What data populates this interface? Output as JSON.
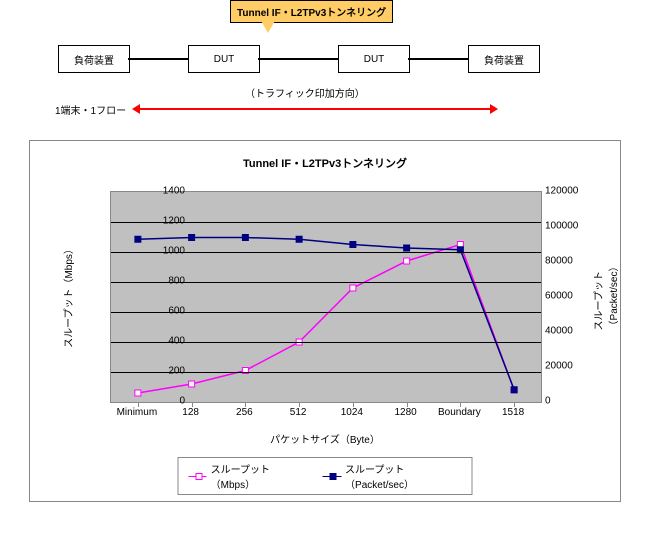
{
  "diagram": {
    "callout": "Tunnel IF・L2TPv3トンネリング",
    "box1": "負荷装置",
    "box2": "DUT",
    "box3": "DUT",
    "box4": "負荷装置",
    "traffic_note": "（トラフィック印加方向）",
    "flow_note": "1端末・1フロー"
  },
  "chart": {
    "title": "Tunnel IF・L2TPv3トンネリング",
    "type": "line",
    "x_label": "パケットサイズ（Byte）",
    "y1_label": "スループット（Mbps）",
    "y2_label": "スループット（Packet/sec）",
    "categories": [
      "Minimum",
      "128",
      "256",
      "512",
      "1024",
      "1280",
      "Boundary",
      "1518"
    ],
    "mbps": [
      60,
      120,
      210,
      400,
      760,
      940,
      1050,
      80
    ],
    "pktsec": [
      93000,
      94000,
      94000,
      93000,
      90000,
      88000,
      87000,
      7000
    ],
    "y1_max": 1400,
    "y1_step": 200,
    "y2_max": 120000,
    "y2_step": 20000,
    "plot_bg": "#c0c0c0",
    "colors": {
      "mbps": "#ff00ff",
      "pktsec": "#000080"
    },
    "legend": [
      "スループット（Mbps）",
      "スループット（Packet/sec）"
    ],
    "marker": "square"
  }
}
